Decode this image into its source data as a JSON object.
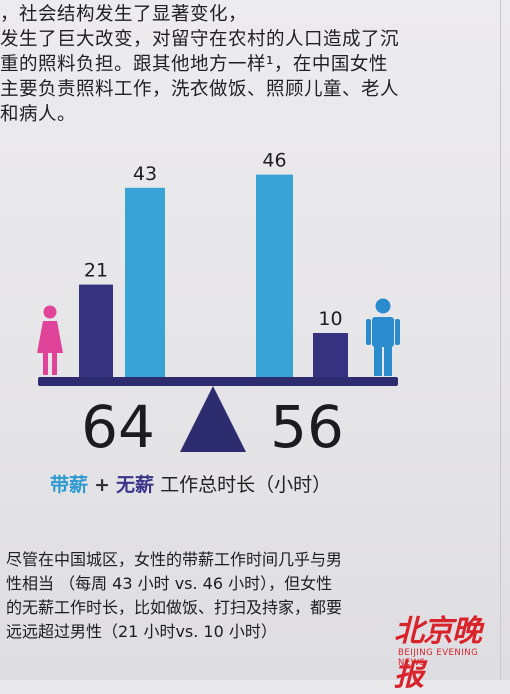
{
  "top_text": [
    "，社会结构发生了显著变化，",
    "发生了巨大改变，对留守在农村的人口造成了沉",
    "重的照料负担。跟其他地方一样¹，在中国女性",
    "主要负责照料工作，洗衣做饭、照顾儿童、老人",
    "和病人。"
  ],
  "chart_data": {
    "type": "bar",
    "categories": [
      "女性带薪",
      "女性无薪",
      "男性带薪",
      "男性无薪"
    ],
    "series": [
      {
        "name": "带薪",
        "values": [
          43,
          null,
          46,
          null
        ]
      },
      {
        "name": "无薪",
        "values": [
          null,
          21,
          null,
          10
        ]
      }
    ],
    "bars": [
      {
        "group": "female",
        "kind": "unpaid",
        "value": 21,
        "label": "21"
      },
      {
        "group": "female",
        "kind": "paid",
        "value": 43,
        "label": "43"
      },
      {
        "group": "male",
        "kind": "paid",
        "value": 46,
        "label": "46"
      },
      {
        "group": "male",
        "kind": "unpaid",
        "value": 10,
        "label": "10"
      }
    ],
    "totals": {
      "female": "64",
      "male": "56"
    },
    "colors": {
      "paid": "#3aa3d6",
      "unpaid": "#37327f",
      "female": "#e0449a",
      "male": "#2b8ccd",
      "beam": "#2d2c6e"
    },
    "legend": {
      "paid": "带薪",
      "plus": "+",
      "unpaid": "无薪",
      "rest": "工作总时长（小时）"
    }
  },
  "caption": [
    "尽管在中国城区，女性的带薪工作时间几乎与男",
    "性相当  （每周 43 小时 vs. 46 小时），但女性",
    "的无薪工作时长，比如做饭、打扫及持家，都要",
    "远远超过男性（21 小时vs. 10 小时）"
  ],
  "watermark": {
    "main": "北京晚报",
    "sub": "BEIJING EVENING NEWS"
  }
}
